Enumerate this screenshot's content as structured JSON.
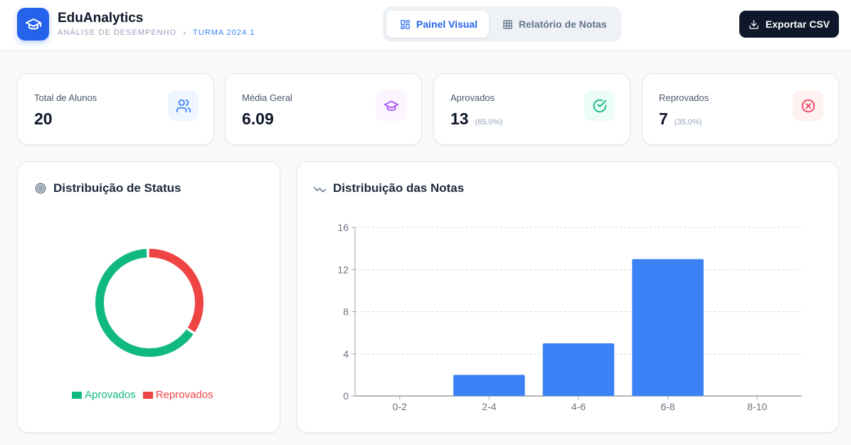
{
  "header": {
    "app_title": "EduAnalytics",
    "breadcrumb_section": "ANÁLISE DE DESEMPENHO",
    "breadcrumb_separator": "›",
    "breadcrumb_current": "TURMA 2024.1",
    "logo_icon": "graduation-cap-icon"
  },
  "tabs": [
    {
      "label": "Painel Visual",
      "icon": "dashboard-grid-icon",
      "active": true
    },
    {
      "label": "Relatório de Notas",
      "icon": "table-icon",
      "active": false
    }
  ],
  "export_button": {
    "label": "Exportar CSV",
    "icon": "download-icon"
  },
  "stats": [
    {
      "label": "Total de Alunos",
      "value": "20",
      "pct": "",
      "icon": "users-icon",
      "color": "#3b82f6",
      "bg": "#eff6ff"
    },
    {
      "label": "Média Geral",
      "value": "6.09",
      "pct": "",
      "icon": "graduation-cap-icon",
      "color": "#a855f7",
      "bg": "#faf5ff"
    },
    {
      "label": "Aprovados",
      "value": "13",
      "pct": "(65.0%)",
      "icon": "check-circle-icon",
      "color": "#10b981",
      "bg": "#ecfdf5"
    },
    {
      "label": "Reprovados",
      "value": "7",
      "pct": "(35.0%)",
      "icon": "x-circle-icon",
      "color": "#f43f5e",
      "bg": "#fff1f2"
    }
  ],
  "status_panel": {
    "title": "Distribuição de Status",
    "icon": "target-icon",
    "chart_data": {
      "type": "pie",
      "categories": [
        "Aprovados",
        "Reprovados"
      ],
      "values": [
        13,
        7
      ],
      "colors": [
        "#10b981",
        "#ef4444"
      ],
      "legend": "bottom"
    }
  },
  "grades_panel": {
    "title": "Distribuição das Notas",
    "icon": "trend-line-icon",
    "chart_data": {
      "type": "bar",
      "categories": [
        "0-2",
        "2-4",
        "4-6",
        "6-8",
        "8-10"
      ],
      "values": [
        0,
        2,
        5,
        13,
        0
      ],
      "ylim": [
        0,
        16
      ],
      "yticks": [
        0,
        4,
        8,
        12,
        16
      ],
      "grid": true,
      "color": "#3b82f6"
    }
  }
}
